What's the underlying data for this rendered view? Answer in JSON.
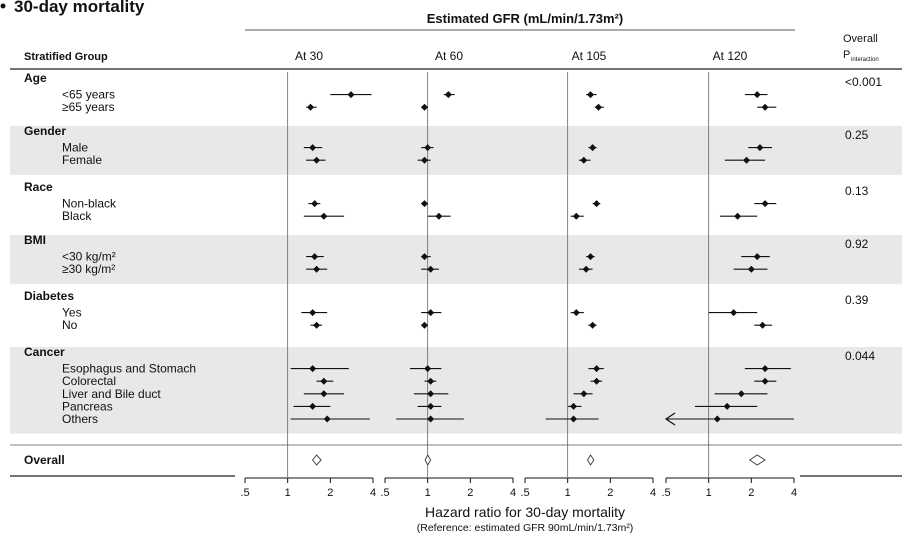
{
  "chart_data": {
    "type": "forest",
    "title": "30-day mortality",
    "header_group_label": "Estimated GFR (mL/min/1.73m²)",
    "column_header_left": "Stratified Group",
    "column_header_right": [
      "Overall",
      "P",
      "interaction"
    ],
    "panels": [
      "At 30",
      "At 60",
      "At 105",
      "At 120"
    ],
    "x_ticks": [
      0.5,
      1,
      2,
      4
    ],
    "x_tick_labels": [
      ".5",
      "1",
      "2",
      "4"
    ],
    "xlim": [
      0.5,
      4
    ],
    "reference_line": 1,
    "xlabel": "Hazard ratio for 30-day mortality",
    "xlabel_sub": "(Reference: estimated GFR 90mL/min/1.73m²)",
    "groups": [
      {
        "name": "Age",
        "p": "<0.001",
        "shaded": false,
        "rows": [
          {
            "label": "<65 years",
            "est": [
              2.8,
              1.4,
              1.45,
              2.2
            ],
            "lo": [
              2.0,
              1.3,
              1.35,
              1.8
            ],
            "hi": [
              3.9,
              1.55,
              1.6,
              2.6
            ]
          },
          {
            "label": "≥65 years",
            "est": [
              1.45,
              0.95,
              1.65,
              2.5
            ],
            "lo": [
              1.35,
              0.9,
              1.55,
              2.2
            ],
            "hi": [
              1.6,
              1.0,
              1.8,
              3.0
            ]
          }
        ]
      },
      {
        "name": "Gender",
        "p": "0.25",
        "shaded": true,
        "rows": [
          {
            "label": "Male",
            "est": [
              1.5,
              1.0,
              1.5,
              2.3
            ],
            "lo": [
              1.3,
              0.9,
              1.4,
              1.9
            ],
            "hi": [
              1.75,
              1.1,
              1.6,
              2.8
            ]
          },
          {
            "label": "Female",
            "est": [
              1.6,
              0.95,
              1.3,
              1.85
            ],
            "lo": [
              1.35,
              0.85,
              1.2,
              1.3
            ],
            "hi": [
              1.85,
              1.05,
              1.45,
              2.5
            ]
          }
        ]
      },
      {
        "name": "Race",
        "p": "0.13",
        "shaded": false,
        "rows": [
          {
            "label": "Non-black",
            "est": [
              1.55,
              0.95,
              1.6,
              2.5
            ],
            "lo": [
              1.4,
              0.9,
              1.5,
              2.1
            ],
            "hi": [
              1.7,
              1.0,
              1.7,
              3.0
            ]
          },
          {
            "label": "Black",
            "est": [
              1.8,
              1.2,
              1.15,
              1.6
            ],
            "lo": [
              1.3,
              1.0,
              1.05,
              1.2
            ],
            "hi": [
              2.5,
              1.45,
              1.3,
              2.2
            ]
          }
        ]
      },
      {
        "name": "BMI",
        "p": "0.92",
        "shaded": true,
        "rows": [
          {
            "label": "<30 kg/m²",
            "est": [
              1.55,
              0.95,
              1.45,
              2.2
            ],
            "lo": [
              1.35,
              0.9,
              1.35,
              1.7
            ],
            "hi": [
              1.8,
              1.05,
              1.55,
              2.7
            ]
          },
          {
            "label": "≥30 kg/m²",
            "est": [
              1.6,
              1.05,
              1.35,
              2.0
            ],
            "lo": [
              1.35,
              0.9,
              1.2,
              1.5
            ],
            "hi": [
              1.9,
              1.2,
              1.5,
              2.6
            ]
          }
        ]
      },
      {
        "name": "Diabetes",
        "p": "0.39",
        "shaded": false,
        "rows": [
          {
            "label": "Yes",
            "est": [
              1.5,
              1.05,
              1.15,
              1.5
            ],
            "lo": [
              1.25,
              0.9,
              1.05,
              1.0
            ],
            "hi": [
              1.9,
              1.25,
              1.3,
              2.2
            ]
          },
          {
            "label": "No",
            "est": [
              1.6,
              0.95,
              1.5,
              2.4
            ],
            "lo": [
              1.45,
              0.9,
              1.4,
              2.1
            ],
            "hi": [
              1.75,
              1.0,
              1.6,
              2.8
            ]
          }
        ]
      },
      {
        "name": "Cancer",
        "p": "0.044",
        "shaded": true,
        "rows": [
          {
            "label": "Esophagus and Stomach",
            "est": [
              1.5,
              1.0,
              1.6,
              2.5
            ],
            "lo": [
              1.05,
              0.75,
              1.4,
              1.8
            ],
            "hi": [
              2.7,
              1.25,
              1.8,
              3.8
            ]
          },
          {
            "label": "Colorectal",
            "est": [
              1.8,
              1.05,
              1.6,
              2.5
            ],
            "lo": [
              1.6,
              0.95,
              1.45,
              2.1
            ],
            "hi": [
              2.1,
              1.15,
              1.75,
              3.0
            ]
          },
          {
            "label": "Liver and Bile duct",
            "est": [
              1.8,
              1.05,
              1.3,
              1.7
            ],
            "lo": [
              1.3,
              0.8,
              1.1,
              1.1
            ],
            "hi": [
              2.5,
              1.4,
              1.5,
              2.6
            ]
          },
          {
            "label": "Pancreas",
            "est": [
              1.5,
              1.05,
              1.1,
              1.35
            ],
            "lo": [
              1.1,
              0.85,
              1.0,
              0.8
            ],
            "hi": [
              2.0,
              1.25,
              1.25,
              2.2
            ]
          },
          {
            "label": "Others",
            "est": [
              1.9,
              1.05,
              1.1,
              1.15
            ],
            "lo": [
              1.05,
              0.6,
              0.7,
              0.5
            ],
            "hi": [
              3.8,
              1.8,
              1.65,
              4.0
            ],
            "lo_arrow": [
              false,
              false,
              false,
              true
            ]
          }
        ]
      }
    ],
    "overall": {
      "label": "Overall",
      "est": [
        1.6,
        1.0,
        1.45,
        2.2
      ],
      "lo": [
        1.5,
        0.96,
        1.38,
        1.95
      ],
      "hi": [
        1.72,
        1.05,
        1.53,
        2.5
      ]
    }
  }
}
